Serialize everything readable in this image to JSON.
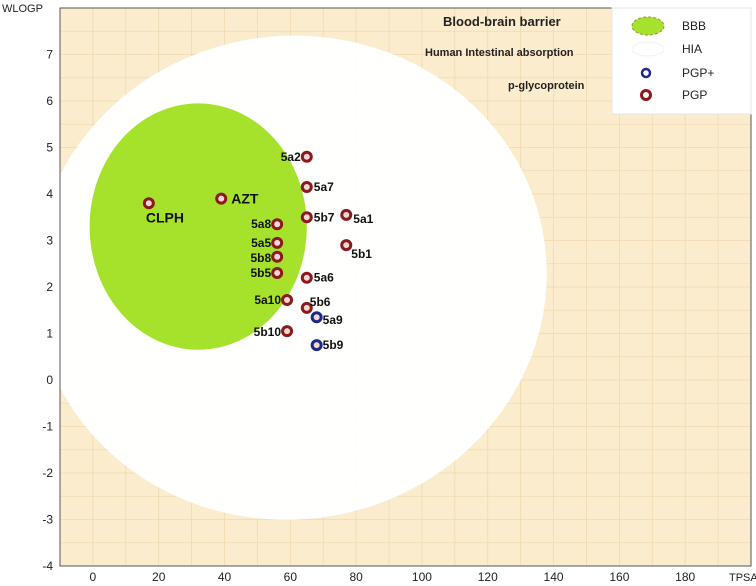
{
  "chart_data": {
    "type": "scatter",
    "title": "",
    "xlabel": "TPSA",
    "ylabel": "WLOGP",
    "xlim": [
      -10,
      200
    ],
    "ylim": [
      -4,
      8
    ],
    "grid": true,
    "legend_position": "top-right",
    "x_ticks": [
      "0",
      "20",
      "40",
      "60",
      "80",
      "100",
      "120",
      "140",
      "160",
      "180"
    ],
    "y_ticks": [
      "-4",
      "-3",
      "-2",
      "-1",
      "0",
      "1",
      "2",
      "3",
      "4",
      "5",
      "6",
      "7"
    ],
    "annotations": {
      "bbb": "Blood-brain barrier",
      "hia": "Human Intestinal absorption",
      "pgp": "p-glycoprotein"
    },
    "legend": [
      "BBB",
      "HIA",
      "PGP+",
      "PGP"
    ],
    "regions": [
      {
        "name": "BBB",
        "color": "#a6e22c",
        "shape": "ellipse",
        "center": [
          32,
          3.3
        ],
        "radii": [
          33,
          2.65
        ]
      },
      {
        "name": "HIA",
        "color": "#ffffff",
        "shape": "ellipse",
        "center": [
          60,
          2.2
        ],
        "radii": [
          78,
          5.2
        ]
      }
    ],
    "series": [
      {
        "name": "PGP",
        "color": "#8b1a1a",
        "points": [
          {
            "label": "CLPH",
            "x": 17,
            "y": 3.8
          },
          {
            "label": "AZT",
            "x": 39,
            "y": 3.9
          },
          {
            "label": "5a2",
            "x": 65,
            "y": 4.8
          },
          {
            "label": "5a7",
            "x": 65,
            "y": 4.15
          },
          {
            "label": "5b7",
            "x": 65,
            "y": 3.5
          },
          {
            "label": "5a1",
            "x": 77,
            "y": 3.55
          },
          {
            "label": "5a8",
            "x": 56,
            "y": 3.35
          },
          {
            "label": "5a5",
            "x": 56,
            "y": 2.95
          },
          {
            "label": "5b8",
            "x": 56,
            "y": 2.65
          },
          {
            "label": "5b1",
            "x": 77,
            "y": 2.9
          },
          {
            "label": "5b5",
            "x": 56,
            "y": 2.3
          },
          {
            "label": "5a6",
            "x": 65,
            "y": 2.2
          },
          {
            "label": "5a10",
            "x": 59,
            "y": 1.72
          },
          {
            "label": "5b6",
            "x": 65,
            "y": 1.55
          },
          {
            "label": "5b10",
            "x": 59,
            "y": 1.05
          }
        ]
      },
      {
        "name": "PGP+",
        "color": "#1a2a8b",
        "points": [
          {
            "label": "5a9",
            "x": 68,
            "y": 1.35
          },
          {
            "label": "5b9",
            "x": 68,
            "y": 0.75
          }
        ]
      }
    ]
  },
  "colors": {
    "background": "#fbeccd",
    "grid": "#f0d9b0",
    "bbb": "#a6e22c",
    "hia": "#ffffff",
    "pgp": "#8b1a1a",
    "pgp_plus": "#1a2a8b"
  }
}
